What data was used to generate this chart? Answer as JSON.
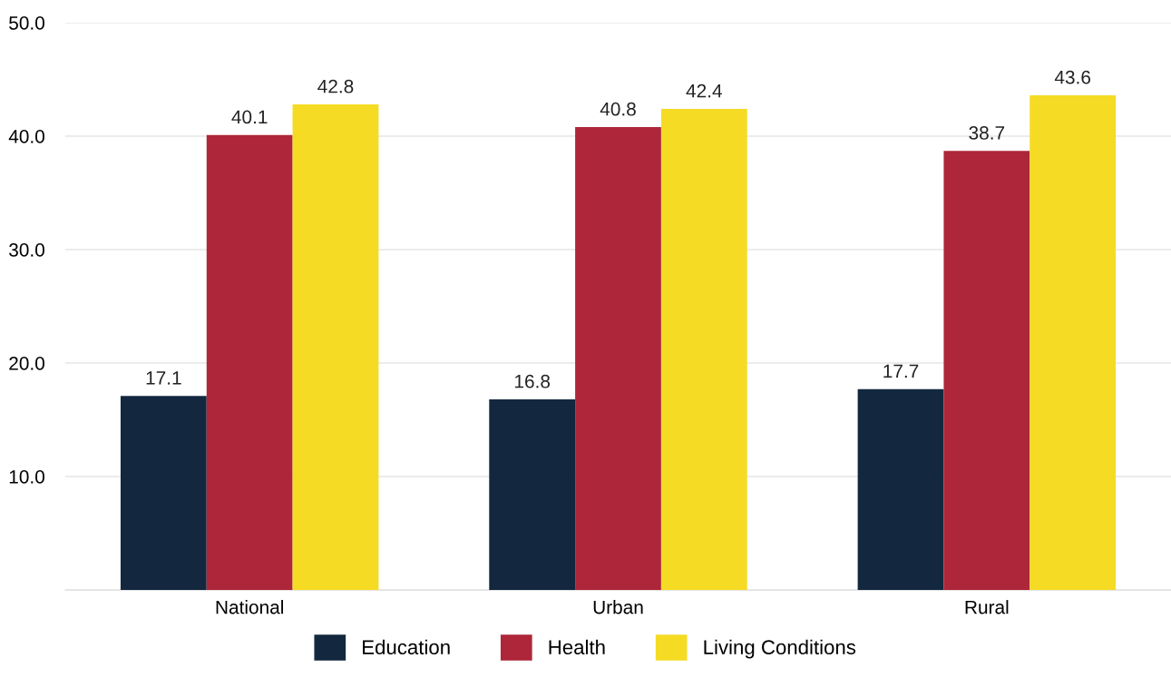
{
  "chart_data": {
    "type": "bar",
    "categories": [
      "National",
      "Urban",
      "Rural"
    ],
    "series": [
      {
        "name": "Education",
        "color": "#13283f",
        "values": [
          17.1,
          16.8,
          17.7
        ]
      },
      {
        "name": "Health",
        "color": "#ae263a",
        "values": [
          40.1,
          40.8,
          38.7
        ]
      },
      {
        "name": "Living Conditions",
        "color": "#f5db24",
        "values": [
          42.8,
          42.4,
          43.6
        ]
      }
    ],
    "ylim": [
      0,
      50
    ],
    "yticks": [
      {
        "value": 10,
        "label": "10.0"
      },
      {
        "value": 20,
        "label": "20.0"
      },
      {
        "value": 30,
        "label": "30.0"
      },
      {
        "value": 40,
        "label": "40.0"
      },
      {
        "value": 50,
        "label": "50.0"
      }
    ],
    "grid": "y",
    "legend": "bottom",
    "data_labels": true
  }
}
